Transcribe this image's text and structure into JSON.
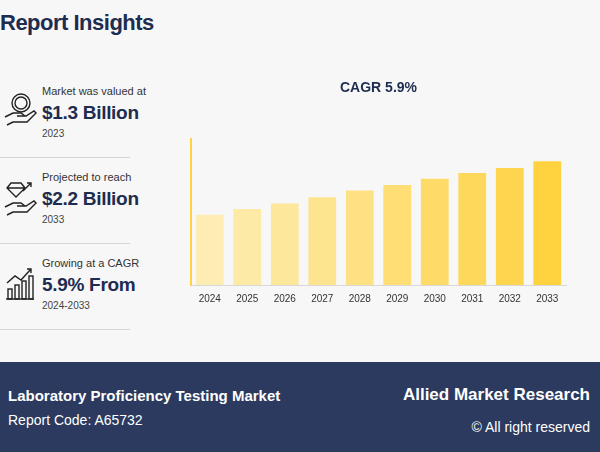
{
  "header": {
    "title": "Report Insights"
  },
  "stats": [
    {
      "label": "Market was valued at",
      "value": "$1.3 Billion",
      "year": "2023"
    },
    {
      "label": "Projected to reach",
      "value": "$2.2 Billion",
      "year": "2033"
    },
    {
      "label": "Growing at a CAGR",
      "value": "5.9% From",
      "year": "2024-2033"
    }
  ],
  "chart_data": {
    "type": "bar",
    "title": "CAGR 5.9%",
    "categories": [
      "2024",
      "2025",
      "2026",
      "2027",
      "2028",
      "2029",
      "2030",
      "2031",
      "2032",
      "2033"
    ],
    "values": [
      1.25,
      1.35,
      1.45,
      1.56,
      1.68,
      1.78,
      1.89,
      1.99,
      2.08,
      2.2
    ],
    "colors": [
      "#fdedb3",
      "#fdeaa6",
      "#fde79a",
      "#fde48e",
      "#fde182",
      "#fede75",
      "#fedb68",
      "#fed85b",
      "#fed54e",
      "#ffd23f"
    ],
    "ylim": [
      0,
      2.6
    ],
    "grid": false,
    "tick_labels": "x"
  },
  "footer": {
    "report": "Laboratory Proficiency Testing Market",
    "code": "Report Code: A65732",
    "brand": "Allied Market Research",
    "rights": "© All right reserved"
  }
}
